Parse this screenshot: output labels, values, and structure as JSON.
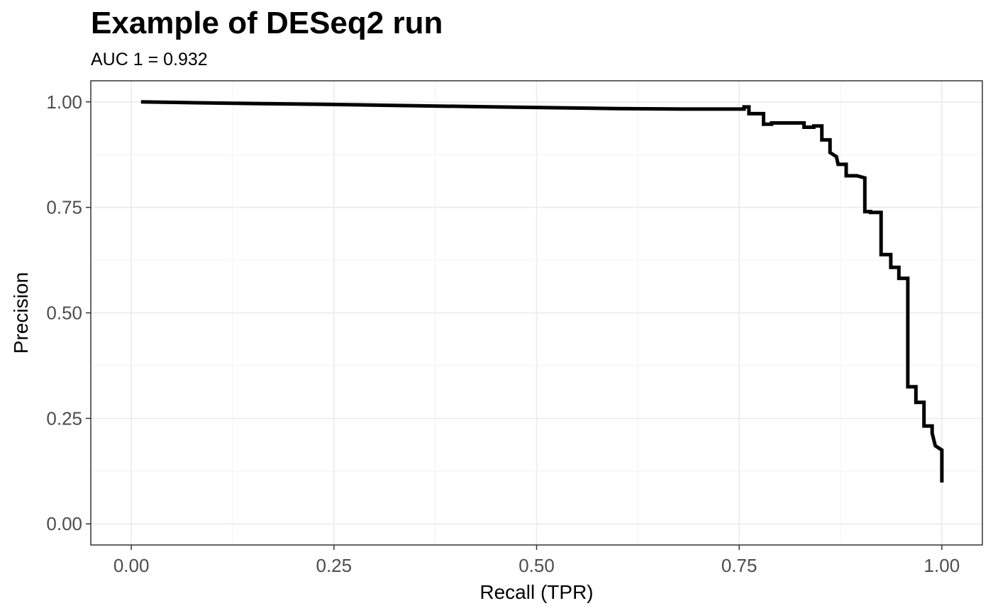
{
  "chart_data": {
    "type": "line",
    "title": "Example of DESeq2 run",
    "subtitle": "AUC 1 = 0.932",
    "xlabel": "Recall (TPR)",
    "ylabel": "Precision",
    "xlim": [
      -0.05,
      1.05
    ],
    "ylim": [
      -0.05,
      1.05
    ],
    "x_ticks": [
      0,
      0.25,
      0.5,
      0.75,
      1
    ],
    "x_tick_labels": [
      "0.00",
      "0.25",
      "0.50",
      "0.75",
      "1.00"
    ],
    "y_ticks": [
      0,
      0.25,
      0.5,
      0.75,
      1
    ],
    "y_tick_labels": [
      "0.00",
      "0.25",
      "0.50",
      "0.75",
      "1.00"
    ],
    "grid": true,
    "line_color": "#000000",
    "points": [
      [
        0.012,
        1.0
      ],
      [
        0.08,
        0.998
      ],
      [
        0.16,
        0.996
      ],
      [
        0.24,
        0.994
      ],
      [
        0.31,
        0.992
      ],
      [
        0.38,
        0.99
      ],
      [
        0.45,
        0.988
      ],
      [
        0.53,
        0.986
      ],
      [
        0.6,
        0.984
      ],
      [
        0.68,
        0.983
      ],
      [
        0.756,
        0.983
      ],
      [
        0.756,
        0.988
      ],
      [
        0.762,
        0.988
      ],
      [
        0.762,
        0.972
      ],
      [
        0.78,
        0.972
      ],
      [
        0.78,
        0.947
      ],
      [
        0.79,
        0.947
      ],
      [
        0.79,
        0.95
      ],
      [
        0.83,
        0.95
      ],
      [
        0.83,
        0.94
      ],
      [
        0.842,
        0.94
      ],
      [
        0.842,
        0.943
      ],
      [
        0.852,
        0.943
      ],
      [
        0.852,
        0.91
      ],
      [
        0.862,
        0.91
      ],
      [
        0.862,
        0.88
      ],
      [
        0.87,
        0.87
      ],
      [
        0.872,
        0.852
      ],
      [
        0.882,
        0.852
      ],
      [
        0.882,
        0.825
      ],
      [
        0.895,
        0.825
      ],
      [
        0.895,
        0.825
      ],
      [
        0.905,
        0.82
      ],
      [
        0.905,
        0.74
      ],
      [
        0.912,
        0.74
      ],
      [
        0.912,
        0.738
      ],
      [
        0.925,
        0.738
      ],
      [
        0.925,
        0.638
      ],
      [
        0.937,
        0.638
      ],
      [
        0.937,
        0.608
      ],
      [
        0.947,
        0.608
      ],
      [
        0.947,
        0.582
      ],
      [
        0.958,
        0.582
      ],
      [
        0.958,
        0.325
      ],
      [
        0.968,
        0.325
      ],
      [
        0.968,
        0.288
      ],
      [
        0.978,
        0.288
      ],
      [
        0.978,
        0.232
      ],
      [
        0.988,
        0.232
      ],
      [
        0.988,
        0.215
      ],
      [
        0.99,
        0.2
      ],
      [
        0.992,
        0.185
      ],
      [
        1.0,
        0.175
      ],
      [
        1.0,
        0.098
      ]
    ]
  }
}
